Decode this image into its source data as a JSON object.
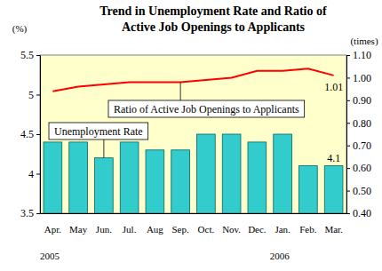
{
  "chart_data": {
    "type": "bar",
    "title": "Trend in Unemployment Rate and Ratio of Active Job Openings to Applicants",
    "y_label": "(%)",
    "y2_label": "(times)",
    "categories": [
      "Apr.",
      "May",
      "Jun.",
      "Jul.",
      "Aug",
      "Sep.",
      "Oct.",
      "Nov.",
      "Dec.",
      "Jan.",
      "Feb.",
      "Mar."
    ],
    "annotations": [
      {
        "text": "2005",
        "category": "Apr."
      },
      {
        "text": "2006",
        "category": "Jan."
      }
    ],
    "series": [
      {
        "name": "Unemployment Rate",
        "type": "bar",
        "color": "#33cccc",
        "values": [
          4.4,
          4.4,
          4.2,
          4.4,
          4.3,
          4.3,
          4.5,
          4.5,
          4.4,
          4.5,
          4.1,
          4.1
        ],
        "value_labels": [
          null,
          null,
          null,
          null,
          null,
          null,
          null,
          null,
          null,
          null,
          null,
          "4.1"
        ]
      },
      {
        "name": "Ratio of Active Job Openings to Applicants",
        "type": "line",
        "color": "#ff0000",
        "axis": "y2",
        "values": [
          0.94,
          0.96,
          0.97,
          0.98,
          0.98,
          0.98,
          0.99,
          1.0,
          1.03,
          1.03,
          1.04,
          1.01
        ],
        "value_labels": [
          null,
          null,
          null,
          null,
          null,
          null,
          null,
          null,
          null,
          null,
          null,
          "1.01"
        ]
      }
    ],
    "ylim": [
      3.5,
      5.5
    ],
    "yticks": [
      3.5,
      4,
      4.5,
      5,
      5.5
    ],
    "y2lim": [
      0.4,
      1.1
    ],
    "y2ticks": [
      {
        "value": 0.4,
        "label": "0.40"
      },
      {
        "value": 0.5,
        "label": "0.50"
      },
      {
        "value": 0.6,
        "label": "0.60"
      },
      {
        "value": 0.7,
        "label": "0.70"
      },
      {
        "value": 0.8,
        "label": "0.80"
      },
      {
        "value": 0.9,
        "label": "0.90"
      },
      {
        "value": 1.0,
        "label": "1.00"
      },
      {
        "value": 1.1,
        "label": "1.10"
      }
    ],
    "grid": false
  }
}
